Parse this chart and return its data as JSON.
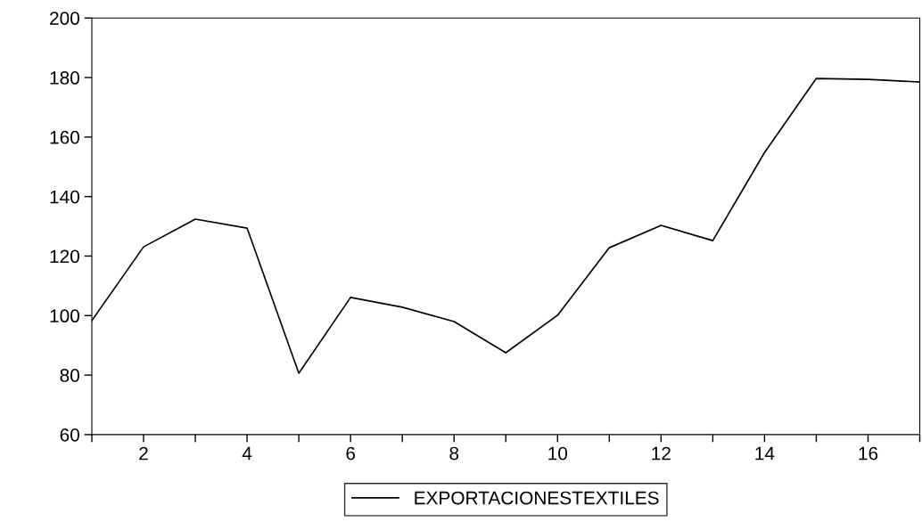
{
  "chart_data": {
    "type": "line",
    "x": [
      1,
      2,
      3,
      4,
      5,
      6,
      7,
      8,
      9,
      10,
      11,
      12,
      13,
      14,
      15,
      16,
      17
    ],
    "series": [
      {
        "name": "EXPORTACIONESTEXTILES",
        "color": "#000000",
        "values": [
          98.3,
          123.1,
          132.4,
          129.4,
          80.6,
          106.1,
          102.8,
          98.0,
          87.5,
          100.1,
          122.8,
          130.3,
          125.2,
          154.8,
          179.7,
          179.4,
          178.5
        ]
      }
    ],
    "xlim": [
      1,
      17
    ],
    "xticks": [
      {
        "value": 1,
        "label": null
      },
      2,
      {
        "value": 3,
        "label": null
      },
      4,
      {
        "value": 5,
        "label": null
      },
      6,
      {
        "value": 7,
        "label": null
      },
      8,
      {
        "value": 9,
        "label": null
      },
      10,
      {
        "value": 11,
        "label": null
      },
      12,
      {
        "value": 13,
        "label": null
      },
      14,
      {
        "value": 15,
        "label": null
      },
      16,
      {
        "value": 17,
        "label": null
      }
    ],
    "ylim": [
      60,
      200
    ],
    "yticks": [
      60,
      80,
      100,
      120,
      140,
      160,
      180,
      200
    ],
    "grid": false,
    "legend": "bottom",
    "marker": "none",
    "line_style": "solid"
  }
}
